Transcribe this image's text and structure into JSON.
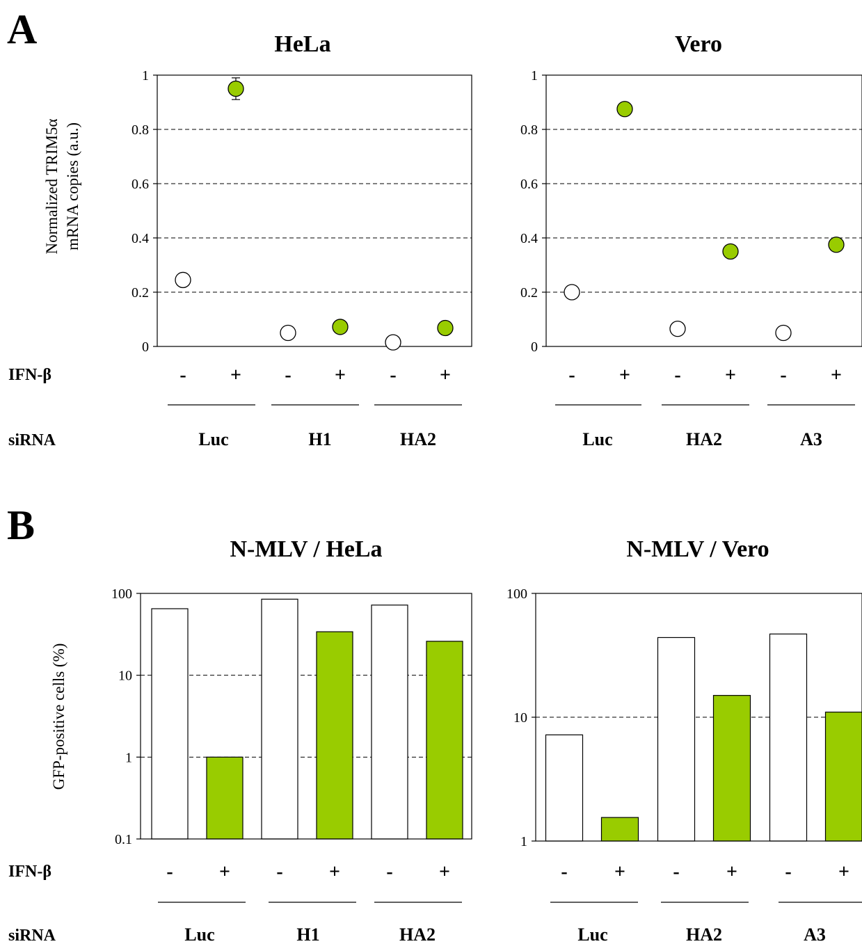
{
  "panels": {
    "A": {
      "letter": "A"
    },
    "B": {
      "letter": "B"
    }
  },
  "colors": {
    "treated": "#99cc00",
    "untreated": "#ffffff",
    "stroke": "#000000"
  },
  "chart_data": [
    {
      "id": "A-hela",
      "type": "scatter",
      "title": "HeLa",
      "ylabel": "Normalized TRIM5α mRNA copies (a.u.)",
      "ylabel_lines": [
        "Normalized TRIM5α",
        "mRNA copies (a.u.)"
      ],
      "ylim": [
        0,
        1
      ],
      "yticks": [
        0,
        0.2,
        0.4,
        0.6,
        0.8,
        1
      ],
      "ytick_labels": [
        "0",
        "0.2",
        "0.4",
        "0.6",
        "0.8",
        "1"
      ],
      "grid": "horizontal-dashed",
      "row_labels": {
        "treatment": "IFN-β",
        "group": "siRNA"
      },
      "treatment_labels": [
        "-",
        "+",
        "-",
        "+",
        "-",
        "+"
      ],
      "groups": [
        "Luc",
        "H1",
        "HA2"
      ],
      "points": [
        {
          "group": "Luc",
          "ifn": "-",
          "value": 0.245
        },
        {
          "group": "Luc",
          "ifn": "+",
          "value": 0.95,
          "error": 0.04
        },
        {
          "group": "H1",
          "ifn": "-",
          "value": 0.05
        },
        {
          "group": "H1",
          "ifn": "+",
          "value": 0.072
        },
        {
          "group": "HA2",
          "ifn": "-",
          "value": 0.015
        },
        {
          "group": "HA2",
          "ifn": "+",
          "value": 0.068
        }
      ]
    },
    {
      "id": "A-vero",
      "type": "scatter",
      "title": "Vero",
      "ylim": [
        0,
        1
      ],
      "yticks": [
        0,
        0.2,
        0.4,
        0.6,
        0.8,
        1
      ],
      "ytick_labels": [
        "0",
        "0.2",
        "0.4",
        "0.6",
        "0.8",
        "1"
      ],
      "grid": "horizontal-dashed",
      "treatment_labels": [
        "-",
        "+",
        "-",
        "+",
        "-",
        "+"
      ],
      "groups": [
        "Luc",
        "HA2",
        "A3"
      ],
      "points": [
        {
          "group": "Luc",
          "ifn": "-",
          "value": 0.2
        },
        {
          "group": "Luc",
          "ifn": "+",
          "value": 0.875
        },
        {
          "group": "HA2",
          "ifn": "-",
          "value": 0.065
        },
        {
          "group": "HA2",
          "ifn": "+",
          "value": 0.35
        },
        {
          "group": "A3",
          "ifn": "-",
          "value": 0.05
        },
        {
          "group": "A3",
          "ifn": "+",
          "value": 0.375
        }
      ]
    },
    {
      "id": "B-hela",
      "type": "bar",
      "title": "N-MLV / HeLa",
      "ylabel": "GFP-positive cells (%)",
      "yscale": "log",
      "ylim": [
        0.1,
        100
      ],
      "yticks": [
        0.1,
        1,
        10,
        100
      ],
      "ytick_labels": [
        "0.1",
        "1",
        "10",
        "100"
      ],
      "grid": "horizontal-dashed",
      "row_labels": {
        "treatment": "IFN-β",
        "group": "siRNA"
      },
      "treatment_labels": [
        "-",
        "+",
        "-",
        "+",
        "-",
        "+"
      ],
      "groups": [
        "Luc",
        "H1",
        "HA2"
      ],
      "bars": [
        {
          "group": "Luc",
          "ifn": "-",
          "value": 65
        },
        {
          "group": "Luc",
          "ifn": "+",
          "value": 1.0
        },
        {
          "group": "H1",
          "ifn": "-",
          "value": 85
        },
        {
          "group": "H1",
          "ifn": "+",
          "value": 34
        },
        {
          "group": "HA2",
          "ifn": "-",
          "value": 72
        },
        {
          "group": "HA2",
          "ifn": "+",
          "value": 26
        }
      ]
    },
    {
      "id": "B-vero",
      "type": "bar",
      "title": "N-MLV / Vero",
      "yscale": "log",
      "ylim": [
        1,
        100
      ],
      "yticks": [
        1,
        10,
        100
      ],
      "ytick_labels": [
        "1",
        "10",
        "100"
      ],
      "grid": "horizontal-dashed",
      "treatment_labels": [
        "-",
        "+",
        "-",
        "+",
        "-",
        "+"
      ],
      "groups": [
        "Luc",
        "HA2",
        "A3"
      ],
      "bars": [
        {
          "group": "Luc",
          "ifn": "-",
          "value": 7.2
        },
        {
          "group": "Luc",
          "ifn": "+",
          "value": 1.55
        },
        {
          "group": "HA2",
          "ifn": "-",
          "value": 44
        },
        {
          "group": "HA2",
          "ifn": "+",
          "value": 15
        },
        {
          "group": "A3",
          "ifn": "-",
          "value": 47
        },
        {
          "group": "A3",
          "ifn": "+",
          "value": 11
        }
      ]
    }
  ]
}
